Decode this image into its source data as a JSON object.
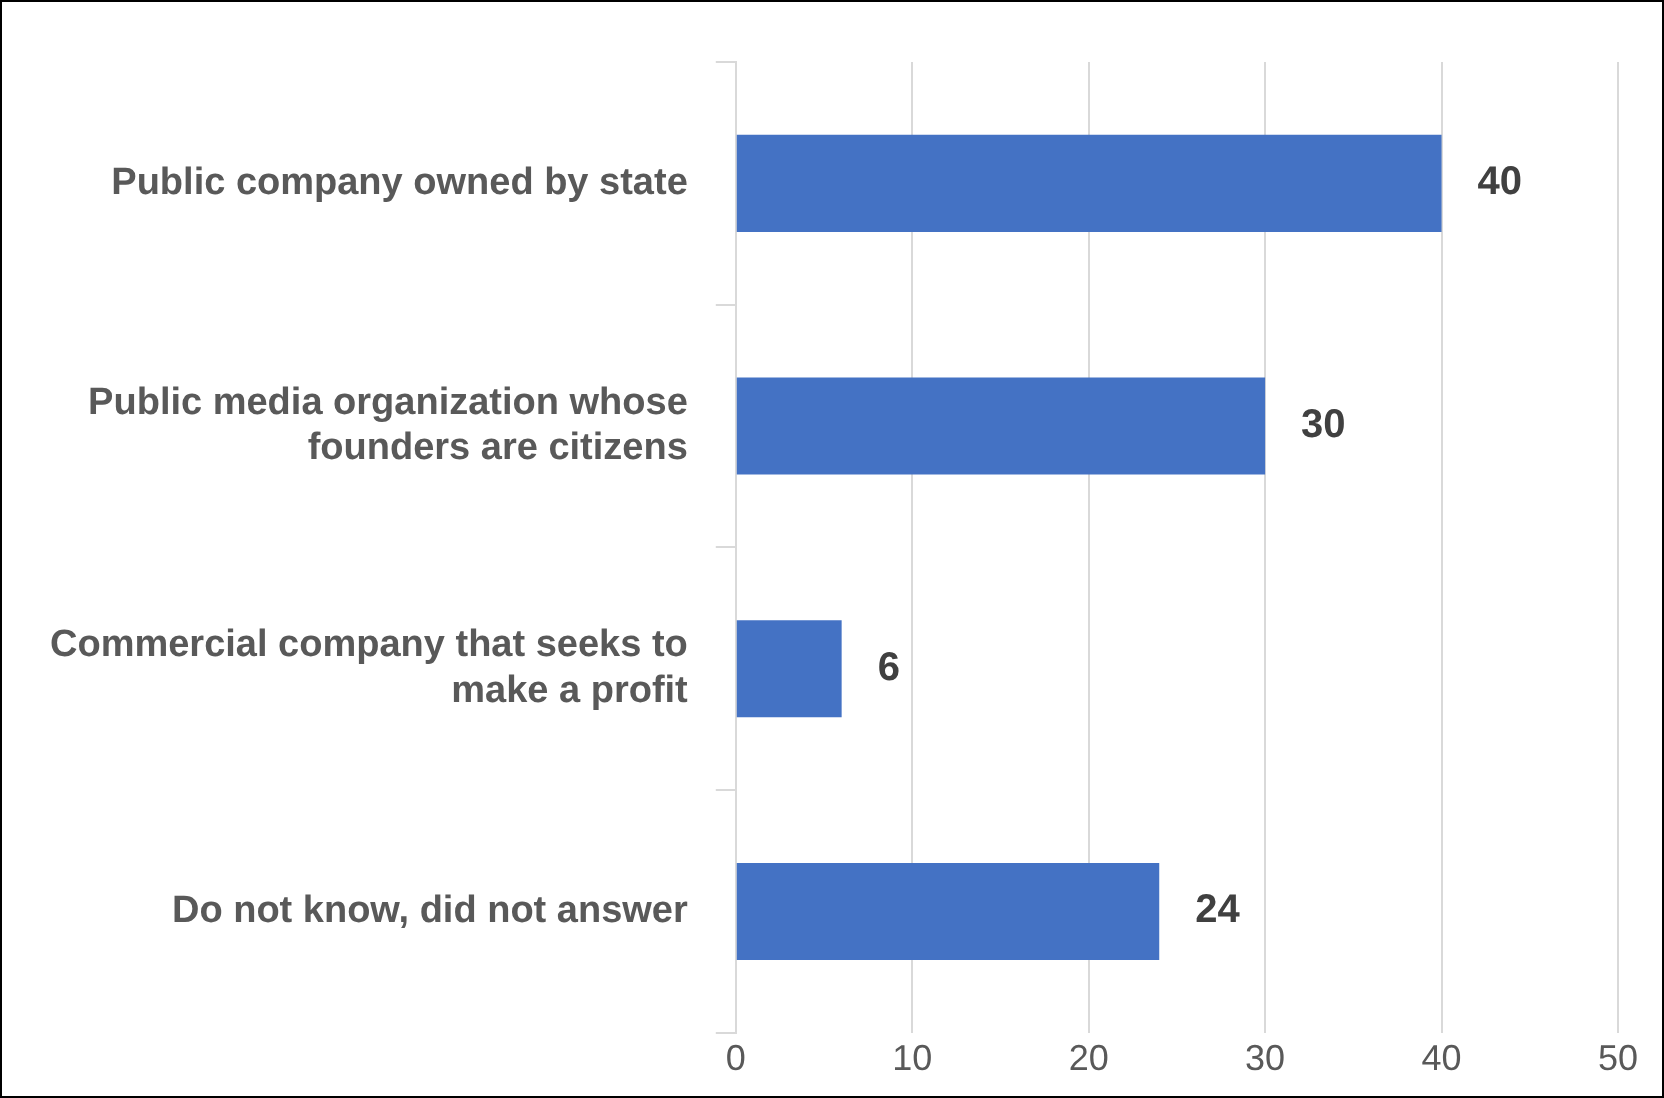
{
  "chart_data": {
    "type": "bar",
    "orientation": "horizontal",
    "categories": [
      "Public company owned by state",
      "Public media organization whose founders are citizens",
      "Commercial company that seeks to make a profit",
      "Do not know, did not answer"
    ],
    "values": [
      40,
      30,
      6,
      24
    ],
    "color": "#4472c4",
    "xlim": [
      0,
      50
    ],
    "xticks": [
      0,
      10,
      20,
      30,
      40,
      50
    ],
    "grid": "x",
    "data_labels": true
  }
}
